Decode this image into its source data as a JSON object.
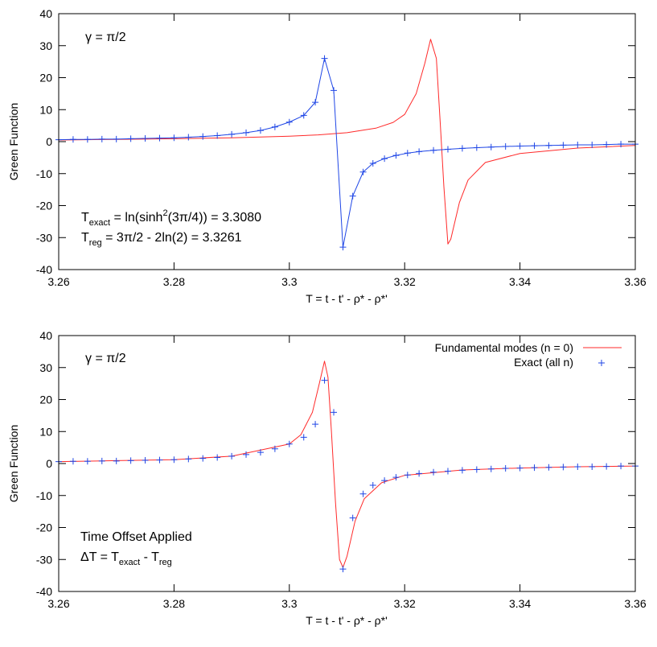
{
  "chart_data": [
    {
      "type": "line",
      "xlabel": "T = t - t' - ρ* - ρ*'",
      "ylabel": "Green Function",
      "xlim": [
        3.26,
        3.36
      ],
      "ylim": [
        -40,
        40
      ],
      "x_ticks": [
        "3.26",
        "3.28",
        "3.3",
        "3.32",
        "3.34",
        "3.36"
      ],
      "y_ticks": [
        "40",
        "30",
        "20",
        "10",
        "0",
        "-10",
        "-20",
        "-30",
        "-40"
      ],
      "grid": false,
      "annotations": {
        "gamma": "γ = π/2",
        "texact": {
          "T": "T",
          "sub": "exact",
          "pre": " = ln(sinh",
          "sup": "2",
          "post": "(3π/4)) = 3.3080"
        },
        "treg": {
          "T": "T",
          "sub": "reg",
          "rest": " = 3π/2 - 2ln(2) = 3.3261"
        }
      },
      "series": [
        {
          "style": "solid line",
          "color": "#ff2a2a",
          "x": [
            3.26,
            3.27,
            3.28,
            3.29,
            3.3,
            3.305,
            3.31,
            3.315,
            3.318,
            3.32,
            3.322,
            3.3235,
            3.3245,
            3.3255,
            3.3262,
            3.3268,
            3.3275,
            3.328,
            3.3295,
            3.331,
            3.334,
            3.34,
            3.35,
            3.36
          ],
          "values": [
            0.5,
            0.7,
            0.9,
            1.2,
            1.7,
            2.1,
            2.8,
            4.2,
            6.0,
            8.5,
            15.0,
            24.5,
            32.0,
            26.0,
            5.0,
            -14.0,
            -32.0,
            -30.5,
            -19.0,
            -12.0,
            -6.5,
            -3.7,
            -2.0,
            -1.2
          ]
        },
        {
          "style": "line with + markers",
          "color": "#1f46e6",
          "x": [
            3.26,
            3.2625,
            3.265,
            3.2675,
            3.27,
            3.2725,
            3.275,
            3.2775,
            3.28,
            3.2825,
            3.285,
            3.2875,
            3.29,
            3.2925,
            3.295,
            3.2975,
            3.3,
            3.3025,
            3.3045,
            3.3061,
            3.3077,
            3.3093,
            3.311,
            3.3128,
            3.3145,
            3.3165,
            3.3185,
            3.3205,
            3.3225,
            3.325,
            3.3275,
            3.33,
            3.3325,
            3.335,
            3.3375,
            3.34,
            3.3425,
            3.345,
            3.3475,
            3.35,
            3.3525,
            3.355,
            3.3575,
            3.36
          ],
          "values": [
            0.6,
            0.7,
            0.7,
            0.8,
            0.8,
            0.9,
            1.0,
            1.1,
            1.2,
            1.4,
            1.6,
            1.9,
            2.3,
            2.8,
            3.5,
            4.6,
            6.1,
            8.2,
            12.3,
            26.0,
            16.0,
            -33.0,
            -17.0,
            -9.5,
            -6.8,
            -5.3,
            -4.3,
            -3.6,
            -3.1,
            -2.7,
            -2.4,
            -2.1,
            -1.9,
            -1.7,
            -1.5,
            -1.4,
            -1.3,
            -1.2,
            -1.1,
            -1.0,
            -1.0,
            -0.9,
            -0.8,
            -0.8
          ]
        }
      ]
    },
    {
      "type": "line",
      "xlabel": "T = t - t' - ρ* - ρ*'",
      "ylabel": "Green Function",
      "xlim": [
        3.26,
        3.36
      ],
      "ylim": [
        -40,
        40
      ],
      "x_ticks": [
        "3.26",
        "3.28",
        "3.3",
        "3.32",
        "3.34",
        "3.36"
      ],
      "y_ticks": [
        "40",
        "30",
        "20",
        "10",
        "0",
        "-10",
        "-20",
        "-30",
        "-40"
      ],
      "grid": false,
      "legend_position": "top-right",
      "annotations": {
        "gamma": "γ = π/2",
        "offset_title": "Time Offset Applied",
        "offset_eq": {
          "pre": "ΔT = T",
          "sub1": "exact",
          "mid": " - T",
          "sub2": "reg"
        }
      },
      "series": [
        {
          "name": "Fundamental modes (n = 0)",
          "style": "solid line",
          "color": "#ff2a2a",
          "x": [
            3.26,
            3.27,
            3.28,
            3.29,
            3.3,
            3.302,
            3.304,
            3.3052,
            3.3061,
            3.3067,
            3.3073,
            3.308,
            3.3087,
            3.3093,
            3.31,
            3.3114,
            3.313,
            3.316,
            3.32,
            3.33,
            3.34,
            3.35,
            3.36
          ],
          "values": [
            0.6,
            0.9,
            1.2,
            2.3,
            6.1,
            9.0,
            16.0,
            25.0,
            32.0,
            27.0,
            10.0,
            -12.0,
            -30.0,
            -32.5,
            -29.0,
            -18.0,
            -11.0,
            -6.0,
            -3.7,
            -2.0,
            -1.4,
            -1.0,
            -0.8
          ]
        },
        {
          "name": "Exact (all n)",
          "style": "+ markers",
          "color": "#1f46e6",
          "x": [
            3.26,
            3.2625,
            3.265,
            3.2675,
            3.27,
            3.2725,
            3.275,
            3.2775,
            3.28,
            3.2825,
            3.285,
            3.2875,
            3.29,
            3.2925,
            3.295,
            3.2975,
            3.3,
            3.3025,
            3.3045,
            3.3061,
            3.3077,
            3.3093,
            3.311,
            3.3128,
            3.3145,
            3.3165,
            3.3185,
            3.3205,
            3.3225,
            3.325,
            3.3275,
            3.33,
            3.3325,
            3.335,
            3.3375,
            3.34,
            3.3425,
            3.345,
            3.3475,
            3.35,
            3.3525,
            3.355,
            3.3575,
            3.36
          ],
          "values": [
            0.6,
            0.7,
            0.7,
            0.8,
            0.8,
            0.9,
            1.0,
            1.1,
            1.2,
            1.4,
            1.6,
            1.9,
            2.3,
            2.8,
            3.5,
            4.6,
            6.1,
            8.2,
            12.3,
            26.0,
            16.0,
            -33.0,
            -17.0,
            -9.5,
            -6.8,
            -5.3,
            -4.3,
            -3.6,
            -3.1,
            -2.7,
            -2.4,
            -2.1,
            -1.9,
            -1.7,
            -1.5,
            -1.4,
            -1.3,
            -1.2,
            -1.1,
            -1.0,
            -1.0,
            -0.9,
            -0.8,
            -0.8
          ]
        }
      ]
    }
  ]
}
